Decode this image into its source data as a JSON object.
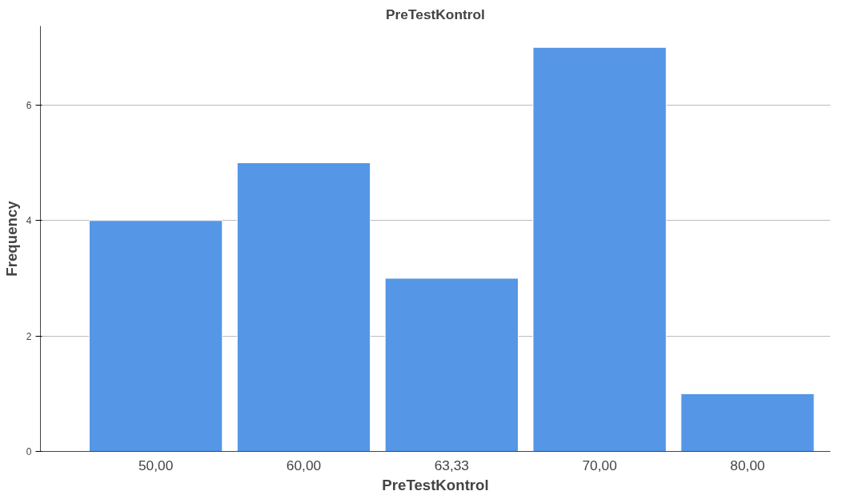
{
  "chart_data": {
    "type": "bar",
    "title": "PreTestKontrol",
    "xlabel": "PreTestKontrol",
    "ylabel": "Frequency",
    "categories": [
      "50,00",
      "60,00",
      "63,33",
      "70,00",
      "80,00"
    ],
    "values": [
      4,
      5,
      3,
      7,
      1
    ],
    "color": "#5596e6",
    "ylim": [
      0,
      7.37
    ],
    "yticks": [
      0,
      2,
      4,
      6
    ],
    "grid": "y"
  }
}
